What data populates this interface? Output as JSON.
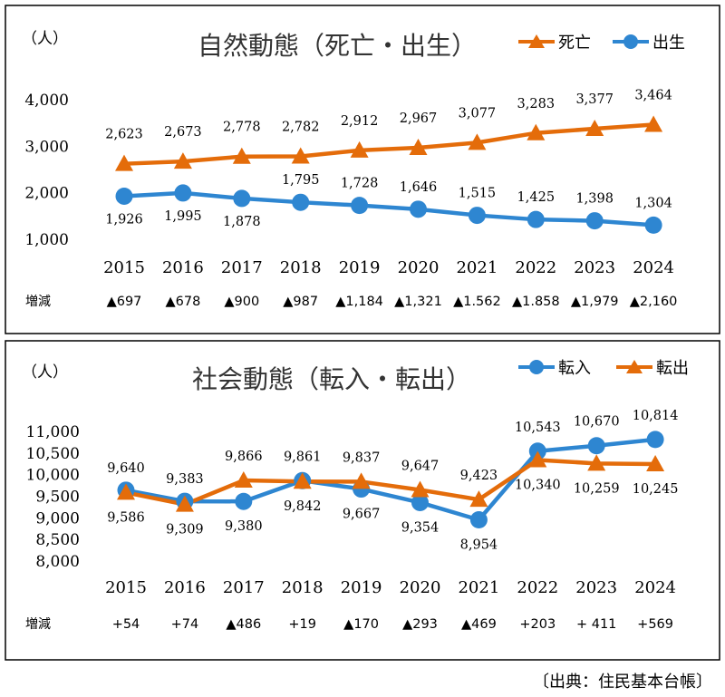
{
  "source_note": "〔出典：住民基本台帳〕",
  "chart_data": [
    {
      "type": "line",
      "title": "自然動態（死亡・出生）",
      "ylabel": "（人）",
      "ylim": [
        1000,
        4000
      ],
      "yticks": [
        "1,000",
        "2,000",
        "3,000",
        "4,000"
      ],
      "categories": [
        "2015",
        "2016",
        "2017",
        "2018",
        "2019",
        "2020",
        "2021",
        "2022",
        "2023",
        "2024"
      ],
      "series": [
        {
          "name": "死亡",
          "color": "#E46C0A",
          "marker": "triangle",
          "values": [
            2623,
            2673,
            2778,
            2782,
            2912,
            2967,
            3077,
            3283,
            3377,
            3464
          ],
          "labels": [
            "2,623",
            "2,673",
            "2,778",
            "2,782",
            "2,912",
            "2,967",
            "3,077",
            "3,283",
            "3,377",
            "3,464"
          ]
        },
        {
          "name": "出生",
          "color": "#2E86D1",
          "marker": "circle",
          "values": [
            1926,
            1995,
            1878,
            1795,
            1728,
            1646,
            1515,
            1425,
            1398,
            1304
          ],
          "labels": [
            "1,926",
            "1,995",
            "1,878",
            "1,795",
            "1,728",
            "1,646",
            "1,515",
            "1,425",
            "1,398",
            "1,304"
          ]
        }
      ],
      "change_row": {
        "label": "増減",
        "values": [
          "▲697",
          "▲678",
          "▲900",
          "▲987",
          "▲1,184",
          "▲1,321",
          "▲1.562",
          "▲1.858",
          "▲1,979",
          "▲2,160"
        ]
      },
      "legend_placement": "top-right",
      "grid": false
    },
    {
      "type": "line",
      "title": "社会動態（転入・転出）",
      "ylabel": "（人）",
      "ylim": [
        8000,
        11000
      ],
      "yticks": [
        "8,000",
        "8,500",
        "9,000",
        "9,500",
        "10,000",
        "10,500",
        "11,000"
      ],
      "categories": [
        "2015",
        "2016",
        "2017",
        "2018",
        "2019",
        "2020",
        "2021",
        "2022",
        "2023",
        "2024"
      ],
      "series": [
        {
          "name": "転入",
          "color": "#2E86D1",
          "marker": "circle",
          "values": [
            9640,
            9383,
            9380,
            9861,
            9667,
            9354,
            8954,
            10543,
            10670,
            10814
          ],
          "labels": [
            "9,640",
            "9,383",
            "9,380",
            "9,861",
            "9,667",
            "9,354",
            "8,954",
            "10,543",
            "10,670",
            "10,814"
          ]
        },
        {
          "name": "転出",
          "color": "#E46C0A",
          "marker": "triangle",
          "values": [
            9586,
            9309,
            9866,
            9842,
            9837,
            9647,
            9423,
            10340,
            10259,
            10245
          ],
          "labels": [
            "9,586",
            "9,309",
            "9,866",
            "9,842",
            "9,837",
            "9,647",
            "9,423",
            "10,340",
            "10,259",
            "10,245"
          ]
        }
      ],
      "change_row": {
        "label": "増減",
        "values": [
          "+54",
          "+74",
          "▲486",
          "+19",
          "▲170",
          "▲293",
          "▲469",
          "+203",
          "+ 411",
          "+569"
        ]
      },
      "legend_placement": "top-right",
      "grid": false
    }
  ]
}
